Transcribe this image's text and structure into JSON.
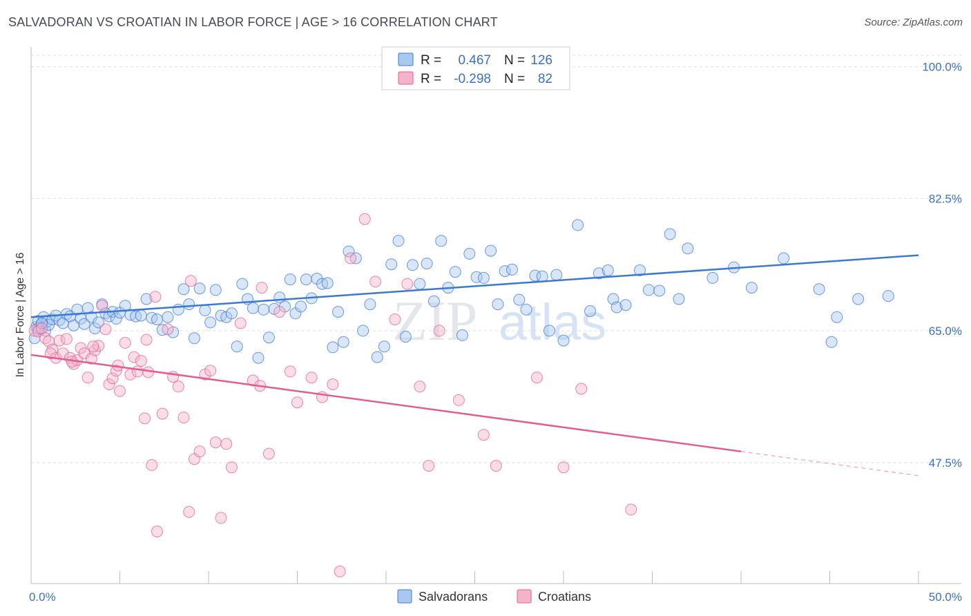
{
  "header": {
    "title": "SALVADORAN VS CROATIAN IN LABOR FORCE | AGE > 16 CORRELATION CHART",
    "source": "Source: ZipAtlas.com"
  },
  "colors": {
    "blue": "#3a78d4",
    "blue_fill": "#a9c8f0",
    "pink": "#e25d90",
    "pink_fill": "#f5b3ca",
    "axis_label": "#3a6fc7",
    "grid": "#dddddd"
  },
  "watermark": {
    "zip": "ZIP",
    "atlas": "atlas"
  },
  "legend_box": {
    "rows": [
      {
        "r_label": "R =",
        "r_value": "0.467",
        "n_label": "N =",
        "n_value": "126"
      },
      {
        "r_label": "R =",
        "r_value": "-0.298",
        "n_label": "N =",
        "n_value": "82"
      }
    ]
  },
  "chart_data": {
    "type": "scatter",
    "title": "SALVADORAN VS CROATIAN IN LABOR FORCE | AGE > 16 CORRELATION CHART",
    "xlabel": "",
    "ylabel": "In Labor Force | Age > 16",
    "xlim": [
      0,
      50
    ],
    "ylim": [
      31.5,
      101.5
    ],
    "x_tick_labels": [
      "0.0%",
      "50.0%"
    ],
    "y_ticks": [
      47.5,
      65.0,
      82.5,
      100.0
    ],
    "y_tick_labels": [
      "47.5%",
      "65.0%",
      "82.5%",
      "100.0%"
    ],
    "grid": true,
    "legend": {
      "position": "bottom-center",
      "entries": [
        "Salvadorans",
        "Croatians"
      ]
    },
    "series": [
      {
        "name": "Salvadorans",
        "R": 0.467,
        "N": 126,
        "trend": {
          "x": [
            0,
            50
          ],
          "y": [
            66.8,
            75.0
          ]
        },
        "points": [
          [
            0.3,
            65.5
          ],
          [
            0.4,
            66.3
          ],
          [
            0.5,
            65.2
          ],
          [
            0.6,
            65.9
          ],
          [
            0.7,
            66.8
          ],
          [
            0.8,
            65.0
          ],
          [
            0.9,
            66.2
          ],
          [
            1.0,
            65.8
          ],
          [
            1.2,
            66.5
          ],
          [
            1.4,
            67.0
          ],
          [
            1.6,
            66.4
          ],
          [
            1.8,
            66.0
          ],
          [
            2.0,
            67.2
          ],
          [
            2.2,
            66.9
          ],
          [
            2.4,
            65.7
          ],
          [
            2.6,
            67.8
          ],
          [
            2.8,
            66.6
          ],
          [
            3.0,
            65.9
          ],
          [
            3.2,
            68.0
          ],
          [
            3.4,
            66.8
          ],
          [
            3.6,
            65.3
          ],
          [
            3.8,
            66.1
          ],
          [
            4.0,
            68.5
          ],
          [
            4.2,
            67.3
          ],
          [
            4.4,
            66.9
          ],
          [
            4.6,
            67.5
          ],
          [
            4.8,
            66.6
          ],
          [
            5.0,
            67.4
          ],
          [
            5.3,
            68.3
          ],
          [
            5.6,
            67.1
          ],
          [
            5.9,
            66.9
          ],
          [
            6.2,
            67.0
          ],
          [
            6.5,
            69.2
          ],
          [
            6.8,
            66.7
          ],
          [
            7.1,
            66.5
          ],
          [
            7.4,
            65.1
          ],
          [
            7.7,
            66.8
          ],
          [
            8.0,
            64.8
          ],
          [
            8.3,
            67.8
          ],
          [
            8.6,
            70.5
          ],
          [
            8.9,
            68.5
          ],
          [
            9.2,
            64.0
          ],
          [
            9.5,
            70.6
          ],
          [
            9.8,
            67.7
          ],
          [
            10.1,
            66.1
          ],
          [
            10.4,
            70.4
          ],
          [
            10.7,
            67.0
          ],
          [
            11.0,
            66.8
          ],
          [
            11.3,
            67.3
          ],
          [
            11.6,
            62.9
          ],
          [
            11.9,
            71.2
          ],
          [
            12.2,
            69.2
          ],
          [
            12.5,
            68.0
          ],
          [
            12.8,
            61.4
          ],
          [
            13.1,
            67.8
          ],
          [
            13.4,
            64.1
          ],
          [
            13.7,
            67.9
          ],
          [
            14.0,
            69.4
          ],
          [
            14.3,
            68.2
          ],
          [
            14.6,
            71.8
          ],
          [
            14.9,
            67.3
          ],
          [
            15.2,
            68.2
          ],
          [
            15.5,
            71.8
          ],
          [
            15.8,
            69.3
          ],
          [
            16.1,
            71.9
          ],
          [
            16.4,
            71.2
          ],
          [
            16.7,
            71.3
          ],
          [
            17.0,
            62.8
          ],
          [
            17.3,
            67.5
          ],
          [
            17.6,
            63.5
          ],
          [
            17.9,
            75.5
          ],
          [
            18.3,
            74.6
          ],
          [
            18.7,
            65.0
          ],
          [
            19.1,
            68.5
          ],
          [
            19.5,
            61.5
          ],
          [
            19.9,
            62.9
          ],
          [
            20.3,
            73.8
          ],
          [
            20.7,
            76.9
          ],
          [
            21.1,
            64.2
          ],
          [
            21.5,
            73.7
          ],
          [
            21.9,
            71.2
          ],
          [
            22.3,
            73.9
          ],
          [
            22.7,
            68.9
          ],
          [
            23.1,
            76.9
          ],
          [
            23.5,
            70.7
          ],
          [
            23.9,
            72.8
          ],
          [
            24.3,
            64.4
          ],
          [
            24.7,
            75.2
          ],
          [
            25.1,
            72.1
          ],
          [
            25.5,
            72.0
          ],
          [
            25.9,
            75.6
          ],
          [
            26.3,
            68.5
          ],
          [
            26.7,
            72.9
          ],
          [
            27.1,
            73.1
          ],
          [
            27.5,
            69.1
          ],
          [
            27.9,
            67.8
          ],
          [
            28.4,
            72.3
          ],
          [
            28.8,
            72.2
          ],
          [
            29.2,
            65.0
          ],
          [
            29.6,
            72.4
          ],
          [
            30.0,
            63.7
          ],
          [
            30.8,
            79.0
          ],
          [
            31.5,
            67.6
          ],
          [
            32.0,
            72.6
          ],
          [
            32.5,
            73.0
          ],
          [
            32.8,
            69.2
          ],
          [
            33.0,
            68.1
          ],
          [
            33.5,
            68.4
          ],
          [
            34.3,
            73.0
          ],
          [
            34.8,
            70.4
          ],
          [
            35.4,
            70.3
          ],
          [
            36.0,
            77.8
          ],
          [
            36.5,
            69.2
          ],
          [
            37.0,
            75.9
          ],
          [
            38.4,
            72.0
          ],
          [
            39.6,
            73.4
          ],
          [
            40.6,
            70.7
          ],
          [
            42.4,
            74.6
          ],
          [
            44.4,
            70.5
          ],
          [
            45.1,
            63.5
          ],
          [
            45.4,
            66.8
          ],
          [
            46.6,
            69.2
          ],
          [
            48.3,
            69.6
          ],
          [
            0.2,
            64.0
          ],
          [
            0.4,
            65.3
          ],
          [
            0.6,
            66.0
          ]
        ]
      },
      {
        "name": "Croatians",
        "R": -0.298,
        "N": 82,
        "trend": {
          "x": [
            0,
            40
          ],
          "y": [
            61.8,
            49.0
          ]
        },
        "trend_dashed": {
          "x": [
            40,
            50
          ],
          "y": [
            49.0,
            45.8
          ]
        },
        "points": [
          [
            0.2,
            65.0
          ],
          [
            0.4,
            64.9
          ],
          [
            0.6,
            65.3
          ],
          [
            0.8,
            64.0
          ],
          [
            1.0,
            63.6
          ],
          [
            1.2,
            62.5
          ],
          [
            1.4,
            61.4
          ],
          [
            1.6,
            63.7
          ],
          [
            1.8,
            62.0
          ],
          [
            2.0,
            63.9
          ],
          [
            2.2,
            61.4
          ],
          [
            2.4,
            60.6
          ],
          [
            2.6,
            61.1
          ],
          [
            2.8,
            62.7
          ],
          [
            3.0,
            62.0
          ],
          [
            3.2,
            58.8
          ],
          [
            3.4,
            61.3
          ],
          [
            3.6,
            62.4
          ],
          [
            3.8,
            63.0
          ],
          [
            4.0,
            68.3
          ],
          [
            4.2,
            65.2
          ],
          [
            4.4,
            57.9
          ],
          [
            4.6,
            58.7
          ],
          [
            4.8,
            59.7
          ],
          [
            5.0,
            57.0
          ],
          [
            5.3,
            63.4
          ],
          [
            5.6,
            59.2
          ],
          [
            5.8,
            61.5
          ],
          [
            6.0,
            59.6
          ],
          [
            6.2,
            61.0
          ],
          [
            6.4,
            53.4
          ],
          [
            6.6,
            59.5
          ],
          [
            6.8,
            47.2
          ],
          [
            7.1,
            38.4
          ],
          [
            7.4,
            54.0
          ],
          [
            7.7,
            65.2
          ],
          [
            8.0,
            58.9
          ],
          [
            8.3,
            57.6
          ],
          [
            8.6,
            53.5
          ],
          [
            8.9,
            41.0
          ],
          [
            9.2,
            48.0
          ],
          [
            9.5,
            49.0
          ],
          [
            9.8,
            59.2
          ],
          [
            10.1,
            59.7
          ],
          [
            10.4,
            50.2
          ],
          [
            10.7,
            40.2
          ],
          [
            11.0,
            50.0
          ],
          [
            11.3,
            46.9
          ],
          [
            12.5,
            58.4
          ],
          [
            12.9,
            57.7
          ],
          [
            13.4,
            48.7
          ],
          [
            14.0,
            67.5
          ],
          [
            14.6,
            59.6
          ],
          [
            15.0,
            55.5
          ],
          [
            15.8,
            58.8
          ],
          [
            16.4,
            56.2
          ],
          [
            17.0,
            57.9
          ],
          [
            17.4,
            33.1
          ],
          [
            18.0,
            74.6
          ],
          [
            18.8,
            79.8
          ],
          [
            19.4,
            71.5
          ],
          [
            20.5,
            66.5
          ],
          [
            21.2,
            71.2
          ],
          [
            21.9,
            57.6
          ],
          [
            22.4,
            47.1
          ],
          [
            23.0,
            65.0
          ],
          [
            24.1,
            55.8
          ],
          [
            25.5,
            51.2
          ],
          [
            26.2,
            47.1
          ],
          [
            28.5,
            58.8
          ],
          [
            30.0,
            46.9
          ],
          [
            31.0,
            57.3
          ],
          [
            33.8,
            41.3
          ],
          [
            6.5,
            63.8
          ],
          [
            7.0,
            69.5
          ],
          [
            9.0,
            71.6
          ],
          [
            11.8,
            66.0
          ],
          [
            13.0,
            70.7
          ],
          [
            1.1,
            62.0
          ],
          [
            2.3,
            60.9
          ],
          [
            3.5,
            62.9
          ],
          [
            4.9,
            60.4
          ]
        ]
      }
    ]
  }
}
